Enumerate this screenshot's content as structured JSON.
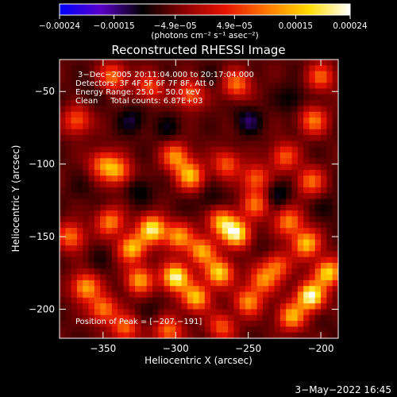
{
  "chart_data": {
    "type": "heatmap",
    "title": "Reconstructed RHESSI Image",
    "xlabel": "Heliocentric X (arcsec)",
    "ylabel": "Heliocentric Y (arcsec)",
    "xlim": [
      -380,
      -188
    ],
    "ylim": [
      -220,
      -28
    ],
    "x_ticks": [
      -350,
      -300,
      -250,
      -200
    ],
    "x_tick_labels": [
      "−350",
      "−300",
      "−250",
      "−200"
    ],
    "y_ticks": [
      -50,
      -100,
      -150,
      -200
    ],
    "y_tick_labels": [
      "−50",
      "−100",
      "−150",
      "−200"
    ],
    "colorbar": {
      "range": [
        -0.00024,
        0.00024
      ],
      "ticks": [
        -0.00024,
        -0.00015,
        -4.9e-05,
        4.9e-05,
        0.00015,
        0.00024
      ],
      "tick_labels": [
        "−0.00024",
        "−0.00015",
        "−4.9e−05",
        "4.9e−05",
        "0.00015",
        "0.00024"
      ],
      "units_label": "(photons cm⁻² s⁻¹ asec⁻²)",
      "colormap": [
        "#0000ff",
        "#5a00c8",
        "#000000",
        "#8c0000",
        "#e61400",
        "#ff7800",
        "#ffdc00",
        "#ffffff"
      ]
    },
    "annotations": [
      "3−Dec−2005 20:11:04.000 to 20:17:04.000",
      "Detectors: 3F 4F 5F 6F 7F 8F, Att 0",
      "Energy Range: 25.0 − 50.0 keV",
      "Clean     Total counts: 6.87E+03"
    ],
    "peak_label": "Position of Peak = [−207,−191]",
    "peak": [
      -207,
      -191
    ],
    "blobs": [
      {
        "x": -343,
        "y": -40,
        "v": 0.0001
      },
      {
        "x": -318,
        "y": -47,
        "v": 7e-05
      },
      {
        "x": -290,
        "y": -52,
        "v": 9e-05
      },
      {
        "x": -258,
        "y": -45,
        "v": 0.0001
      },
      {
        "x": -205,
        "y": -70,
        "v": 0.0001
      },
      {
        "x": -200,
        "y": -40,
        "v": 8e-05
      },
      {
        "x": -368,
        "y": -70,
        "v": 8e-05
      },
      {
        "x": -340,
        "y": -105,
        "v": 0.00011
      },
      {
        "x": -350,
        "y": -100,
        "v": 9e-05
      },
      {
        "x": -300,
        "y": -95,
        "v": 0.00012
      },
      {
        "x": -290,
        "y": -108,
        "v": 0.00015
      },
      {
        "x": -265,
        "y": -100,
        "v": 8e-05
      },
      {
        "x": -245,
        "y": -110,
        "v": 9e-05
      },
      {
        "x": -225,
        "y": -95,
        "v": 8e-05
      },
      {
        "x": -207,
        "y": -112,
        "v": 9e-05
      },
      {
        "x": -345,
        "y": -140,
        "v": 0.00011
      },
      {
        "x": -330,
        "y": -158,
        "v": 0.00016
      },
      {
        "x": -316,
        "y": -145,
        "v": 0.00021
      },
      {
        "x": -298,
        "y": -150,
        "v": 0.00013
      },
      {
        "x": -282,
        "y": -160,
        "v": 0.00014
      },
      {
        "x": -268,
        "y": -140,
        "v": 0.00015
      },
      {
        "x": -258,
        "y": -148,
        "v": 0.0002
      },
      {
        "x": -245,
        "y": -128,
        "v": 9e-05
      },
      {
        "x": -222,
        "y": -140,
        "v": 0.00011
      },
      {
        "x": -210,
        "y": -155,
        "v": 0.00016
      },
      {
        "x": -372,
        "y": -150,
        "v": 0.0001
      },
      {
        "x": -362,
        "y": -185,
        "v": 0.00014
      },
      {
        "x": -350,
        "y": -200,
        "v": 0.00011
      },
      {
        "x": -325,
        "y": -180,
        "v": 0.00013
      },
      {
        "x": -300,
        "y": -178,
        "v": 0.00023
      },
      {
        "x": -286,
        "y": -192,
        "v": 0.00016
      },
      {
        "x": -270,
        "y": -175,
        "v": 0.00018
      },
      {
        "x": -250,
        "y": -195,
        "v": 0.00012
      },
      {
        "x": -240,
        "y": -180,
        "v": 0.00011
      },
      {
        "x": -220,
        "y": -205,
        "v": 0.00014
      },
      {
        "x": -207,
        "y": -191,
        "v": 0.00024
      },
      {
        "x": -195,
        "y": -175,
        "v": 0.00018
      },
      {
        "x": -335,
        "y": -213,
        "v": 9e-05
      },
      {
        "x": -305,
        "y": -215,
        "v": 0.0001
      },
      {
        "x": -268,
        "y": -212,
        "v": 8e-05
      },
      {
        "x": -230,
        "y": -170,
        "v": 9e-05
      },
      {
        "x": -330,
        "y": -70,
        "v": -0.00012
      },
      {
        "x": -305,
        "y": -75,
        "v": -0.0001
      },
      {
        "x": -250,
        "y": -70,
        "v": -0.00013
      },
      {
        "x": -220,
        "y": -55,
        "v": -0.00011
      },
      {
        "x": -275,
        "y": -40,
        "v": -8e-05
      },
      {
        "x": -360,
        "y": -50,
        "v": -8e-05
      },
      {
        "x": -325,
        "y": -118,
        "v": -0.00011
      },
      {
        "x": -275,
        "y": -125,
        "v": -0.0001
      },
      {
        "x": -230,
        "y": -120,
        "v": -0.00012
      },
      {
        "x": -195,
        "y": -130,
        "v": -9e-05
      },
      {
        "x": -365,
        "y": -118,
        "v": -8e-05
      },
      {
        "x": -352,
        "y": -165,
        "v": -8e-05
      },
      {
        "x": -300,
        "y": -130,
        "v": -7e-05
      },
      {
        "x": -240,
        "y": -160,
        "v": -8e-05
      },
      {
        "x": -315,
        "y": -200,
        "v": -8e-05
      },
      {
        "x": -260,
        "y": -205,
        "v": -7e-05
      },
      {
        "x": -195,
        "y": -210,
        "v": -7e-05
      }
    ]
  },
  "footer": {
    "timestamp": "3−May−2022 16:45"
  }
}
